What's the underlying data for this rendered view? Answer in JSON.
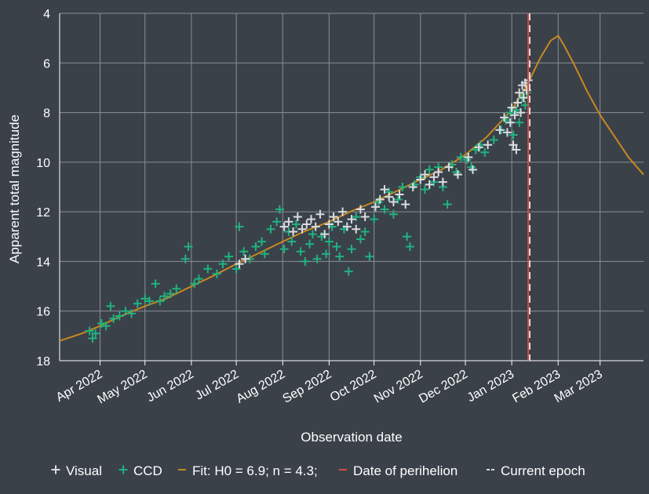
{
  "chart_data": {
    "type": "scatter",
    "xlabel": "Observation date",
    "ylabel": "Apparent total magnitude",
    "x_range": [
      "2022-03-05",
      "2023-03-30"
    ],
    "ylim": [
      18,
      4
    ],
    "y_inverted": true,
    "grid": true,
    "legend_placement": "bottom",
    "y_ticks": [
      4,
      6,
      8,
      10,
      12,
      14,
      16,
      18
    ],
    "x_ticks": [
      {
        "date": "2022-04-01",
        "label": "Apr 2022"
      },
      {
        "date": "2022-05-01",
        "label": "May 2022"
      },
      {
        "date": "2022-06-01",
        "label": "Jun 2022"
      },
      {
        "date": "2022-07-01",
        "label": "Jul 2022"
      },
      {
        "date": "2022-08-01",
        "label": "Aug 2022"
      },
      {
        "date": "2022-09-01",
        "label": "Sep 2022"
      },
      {
        "date": "2022-10-01",
        "label": "Oct 2022"
      },
      {
        "date": "2022-11-01",
        "label": "Nov 2022"
      },
      {
        "date": "2022-12-01",
        "label": "Dec 2022"
      },
      {
        "date": "2023-01-01",
        "label": "Jan 2023"
      },
      {
        "date": "2023-02-01",
        "label": "Feb 2023"
      },
      {
        "date": "2023-03-01",
        "label": "Mar 2023"
      }
    ],
    "legend": [
      {
        "label": "Visual",
        "symbol": "+",
        "color": "#d9dde2"
      },
      {
        "label": "CCD",
        "symbol": "+",
        "color": "#1fb37f"
      },
      {
        "label": "Fit: H0 = 6.9; n = 4.3;",
        "symbol": "—",
        "color": "#c8891f"
      },
      {
        "label": "Date of perihelion",
        "symbol": "—",
        "color": "#d94a46"
      },
      {
        "label": "Current epoch",
        "symbol": "—",
        "color": "#d9dde2"
      }
    ],
    "colors": {
      "background": "#3b4149",
      "grid": "#8a9098",
      "visual": "#d9dde2",
      "ccd": "#1fb37f",
      "fit": "#c8891f",
      "perihelion": "#d94a46",
      "current_epoch": "#d9dde2"
    },
    "perihelion_date": "2023-01-12",
    "current_epoch_date": "2023-01-13",
    "series": [
      {
        "name": "Fit: H0 = 6.9; n = 4.3;",
        "kind": "line",
        "points": [
          [
            "2022-03-05",
            17.2
          ],
          [
            "2022-03-20",
            16.9
          ],
          [
            "2022-04-01",
            16.6
          ],
          [
            "2022-04-15",
            16.2
          ],
          [
            "2022-05-01",
            15.8
          ],
          [
            "2022-05-15",
            15.5
          ],
          [
            "2022-06-01",
            15.0
          ],
          [
            "2022-06-15",
            14.6
          ],
          [
            "2022-07-01",
            14.1
          ],
          [
            "2022-07-15",
            13.7
          ],
          [
            "2022-08-01",
            13.2
          ],
          [
            "2022-08-15",
            12.8
          ],
          [
            "2022-09-01",
            12.4
          ],
          [
            "2022-09-15",
            12.0
          ],
          [
            "2022-10-01",
            11.6
          ],
          [
            "2022-10-15",
            11.2
          ],
          [
            "2022-11-01",
            10.7
          ],
          [
            "2022-11-15",
            10.3
          ],
          [
            "2022-12-01",
            9.7
          ],
          [
            "2022-12-15",
            9.0
          ],
          [
            "2023-01-01",
            7.9
          ],
          [
            "2023-01-12",
            6.8
          ],
          [
            "2023-01-20",
            5.8
          ],
          [
            "2023-01-27",
            5.1
          ],
          [
            "2023-02-01",
            4.9
          ],
          [
            "2023-02-05",
            5.3
          ],
          [
            "2023-02-12",
            6.1
          ],
          [
            "2023-02-20",
            7.1
          ],
          [
            "2023-03-01",
            8.1
          ],
          [
            "2023-03-10",
            8.9
          ],
          [
            "2023-03-20",
            9.8
          ],
          [
            "2023-03-30",
            10.5
          ]
        ]
      },
      {
        "name": "CCD",
        "kind": "scatter",
        "points": [
          [
            "2022-03-25",
            16.8
          ],
          [
            "2022-03-27",
            17.1
          ],
          [
            "2022-03-29",
            16.9
          ],
          [
            "2022-04-02",
            16.5
          ],
          [
            "2022-04-05",
            16.6
          ],
          [
            "2022-04-08",
            15.8
          ],
          [
            "2022-04-10",
            16.3
          ],
          [
            "2022-04-14",
            16.2
          ],
          [
            "2022-04-18",
            16.0
          ],
          [
            "2022-04-22",
            16.1
          ],
          [
            "2022-04-26",
            15.7
          ],
          [
            "2022-05-01",
            15.5
          ],
          [
            "2022-05-04",
            15.6
          ],
          [
            "2022-05-08",
            14.9
          ],
          [
            "2022-05-11",
            15.6
          ],
          [
            "2022-05-14",
            15.4
          ],
          [
            "2022-05-18",
            15.3
          ],
          [
            "2022-05-22",
            15.1
          ],
          [
            "2022-05-28",
            13.9
          ],
          [
            "2022-05-30",
            13.4
          ],
          [
            "2022-06-03",
            14.9
          ],
          [
            "2022-06-06",
            14.7
          ],
          [
            "2022-06-12",
            14.3
          ],
          [
            "2022-06-18",
            14.5
          ],
          [
            "2022-06-22",
            14.1
          ],
          [
            "2022-06-26",
            13.8
          ],
          [
            "2022-07-01",
            14.3
          ],
          [
            "2022-07-03",
            12.6
          ],
          [
            "2022-07-06",
            13.6
          ],
          [
            "2022-07-10",
            13.9
          ],
          [
            "2022-07-14",
            13.4
          ],
          [
            "2022-07-18",
            13.2
          ],
          [
            "2022-07-20",
            13.7
          ],
          [
            "2022-07-24",
            12.7
          ],
          [
            "2022-07-28",
            12.4
          ],
          [
            "2022-07-30",
            11.9
          ],
          [
            "2022-08-02",
            13.5
          ],
          [
            "2022-08-05",
            12.8
          ],
          [
            "2022-08-07",
            13.2
          ],
          [
            "2022-08-10",
            12.5
          ],
          [
            "2022-08-13",
            13.6
          ],
          [
            "2022-08-16",
            14.0
          ],
          [
            "2022-08-19",
            13.3
          ],
          [
            "2022-08-21",
            12.9
          ],
          [
            "2022-08-24",
            13.9
          ],
          [
            "2022-08-27",
            13.0
          ],
          [
            "2022-08-30",
            13.7
          ],
          [
            "2022-09-01",
            13.2
          ],
          [
            "2022-09-03",
            12.6
          ],
          [
            "2022-09-06",
            13.4
          ],
          [
            "2022-09-08",
            13.8
          ],
          [
            "2022-09-11",
            12.7
          ],
          [
            "2022-09-14",
            14.4
          ],
          [
            "2022-09-16",
            13.5
          ],
          [
            "2022-09-19",
            12.2
          ],
          [
            "2022-09-22",
            13.1
          ],
          [
            "2022-09-25",
            12.8
          ],
          [
            "2022-09-28",
            13.8
          ],
          [
            "2022-10-01",
            12.3
          ],
          [
            "2022-10-04",
            11.6
          ],
          [
            "2022-10-08",
            11.9
          ],
          [
            "2022-10-11",
            11.2
          ],
          [
            "2022-10-14",
            12.1
          ],
          [
            "2022-10-17",
            11.5
          ],
          [
            "2022-10-20",
            11.0
          ],
          [
            "2022-10-23",
            13.0
          ],
          [
            "2022-10-25",
            13.4
          ],
          [
            "2022-10-28",
            10.9
          ],
          [
            "2022-11-01",
            10.6
          ],
          [
            "2022-11-04",
            11.1
          ],
          [
            "2022-11-07",
            10.3
          ],
          [
            "2022-11-10",
            10.8
          ],
          [
            "2022-11-13",
            10.2
          ],
          [
            "2022-11-16",
            11.0
          ],
          [
            "2022-11-19",
            11.7
          ],
          [
            "2022-11-22",
            10.1
          ],
          [
            "2022-11-25",
            10.4
          ],
          [
            "2022-11-28",
            9.8
          ],
          [
            "2022-12-02",
            9.9
          ],
          [
            "2022-12-05",
            10.2
          ],
          [
            "2022-12-08",
            9.5
          ],
          [
            "2022-12-11",
            9.3
          ],
          [
            "2022-12-14",
            9.6
          ],
          [
            "2022-12-20",
            9.1
          ],
          [
            "2022-12-25",
            8.7
          ],
          [
            "2022-12-28",
            8.3
          ],
          [
            "2022-12-31",
            8.0
          ],
          [
            "2023-01-02",
            8.9
          ],
          [
            "2023-01-04",
            7.9
          ],
          [
            "2023-01-06",
            8.4
          ],
          [
            "2023-01-08",
            7.4
          ],
          [
            "2023-01-10",
            7.7
          ],
          [
            "2023-01-11",
            7.2
          ]
        ]
      },
      {
        "name": "Visual",
        "kind": "scatter",
        "points": [
          [
            "2022-07-03",
            14.1
          ],
          [
            "2022-07-07",
            13.9
          ],
          [
            "2022-08-02",
            12.6
          ],
          [
            "2022-08-05",
            12.4
          ],
          [
            "2022-08-08",
            12.8
          ],
          [
            "2022-08-11",
            12.2
          ],
          [
            "2022-08-14",
            12.7
          ],
          [
            "2022-08-17",
            12.5
          ],
          [
            "2022-08-20",
            12.3
          ],
          [
            "2022-08-23",
            12.6
          ],
          [
            "2022-08-26",
            12.1
          ],
          [
            "2022-08-29",
            12.9
          ],
          [
            "2022-09-01",
            12.5
          ],
          [
            "2022-09-04",
            12.2
          ],
          [
            "2022-09-07",
            12.4
          ],
          [
            "2022-09-10",
            12.0
          ],
          [
            "2022-09-13",
            12.6
          ],
          [
            "2022-09-16",
            12.3
          ],
          [
            "2022-09-19",
            12.7
          ],
          [
            "2022-09-22",
            11.9
          ],
          [
            "2022-09-25",
            12.2
          ],
          [
            "2022-10-02",
            11.8
          ],
          [
            "2022-10-05",
            11.5
          ],
          [
            "2022-10-08",
            11.1
          ],
          [
            "2022-10-11",
            11.4
          ],
          [
            "2022-10-14",
            11.6
          ],
          [
            "2022-10-18",
            11.3
          ],
          [
            "2022-10-22",
            11.7
          ],
          [
            "2022-10-27",
            11.0
          ],
          [
            "2022-11-01",
            10.7
          ],
          [
            "2022-11-04",
            10.5
          ],
          [
            "2022-11-07",
            10.9
          ],
          [
            "2022-11-10",
            10.6
          ],
          [
            "2022-11-13",
            10.4
          ],
          [
            "2022-11-16",
            10.8
          ],
          [
            "2022-11-20",
            10.2
          ],
          [
            "2022-11-26",
            10.5
          ],
          [
            "2022-12-03",
            9.8
          ],
          [
            "2022-12-06",
            10.3
          ],
          [
            "2022-12-10",
            9.4
          ],
          [
            "2022-12-16",
            9.3
          ],
          [
            "2022-12-24",
            8.7
          ],
          [
            "2022-12-27",
            8.2
          ],
          [
            "2022-12-29",
            8.8
          ],
          [
            "2022-12-31",
            8.4
          ],
          [
            "2023-01-01",
            7.8
          ],
          [
            "2023-01-02",
            9.3
          ],
          [
            "2023-01-03",
            8.1
          ],
          [
            "2023-01-04",
            9.5
          ],
          [
            "2023-01-05",
            7.6
          ],
          [
            "2023-01-06",
            7.2
          ],
          [
            "2023-01-07",
            8.0
          ],
          [
            "2023-01-08",
            6.9
          ],
          [
            "2023-01-09",
            7.4
          ],
          [
            "2023-01-10",
            6.8
          ],
          [
            "2023-01-11",
            7.1
          ],
          [
            "2023-01-12",
            6.7
          ]
        ]
      }
    ]
  }
}
